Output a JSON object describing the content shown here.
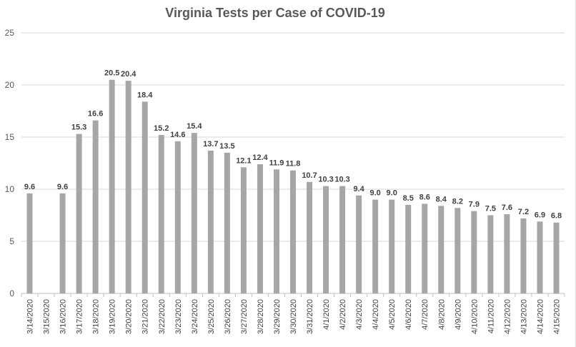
{
  "chart_data": {
    "type": "bar",
    "title": "Virginia Tests per Case of COVID-19",
    "xlabel": "",
    "ylabel": "",
    "ylim": [
      0,
      25
    ],
    "yticks": [
      "0",
      "5",
      "10",
      "15",
      "20",
      "25"
    ],
    "grid": true,
    "legend": "none",
    "bar_color": "#a6a6a6",
    "categories": [
      "3/14/2020",
      "3/15/2020",
      "3/16/2020",
      "3/17/2020",
      "3/18/2020",
      "3/19/2020",
      "3/20/2020",
      "3/21/2020",
      "3/22/2020",
      "3/23/2020",
      "3/24/2020",
      "3/25/2020",
      "3/26/2020",
      "3/27/2020",
      "3/28/2020",
      "3/29/2020",
      "3/30/2020",
      "3/31/2020",
      "4/1/2020",
      "4/2/2020",
      "4/3/2020",
      "4/4/2020",
      "4/5/2020",
      "4/6/2020",
      "4/7/2020",
      "4/8/2020",
      "4/9/2020",
      "4/10/2020",
      "4/11/2020",
      "4/12/2020",
      "4/13/2020",
      "4/14/2020",
      "4/15/2020"
    ],
    "values": [
      9.6,
      null,
      9.6,
      15.3,
      16.6,
      20.5,
      20.4,
      18.4,
      15.2,
      14.6,
      15.4,
      13.7,
      13.5,
      12.1,
      12.4,
      11.9,
      11.8,
      10.7,
      10.3,
      10.3,
      9.4,
      9.0,
      9.0,
      8.5,
      8.6,
      8.4,
      8.2,
      7.9,
      7.5,
      7.6,
      7.2,
      6.9,
      6.8
    ],
    "data_labels": [
      "9.6",
      "",
      "9.6",
      "15.3",
      "16.6",
      "20.5",
      "20.4",
      "18.4",
      "15.2",
      "14.6",
      "15.4",
      "13.7",
      "13.5",
      "12.1",
      "12.4",
      "11.9",
      "11.8",
      "10.7",
      "10.3",
      "10.3",
      "9.4",
      "9.0",
      "9.0",
      "8.5",
      "8.6",
      "8.4",
      "8.2",
      "7.9",
      "7.5",
      "7.6",
      "7.2",
      "6.9",
      "6.8"
    ]
  }
}
